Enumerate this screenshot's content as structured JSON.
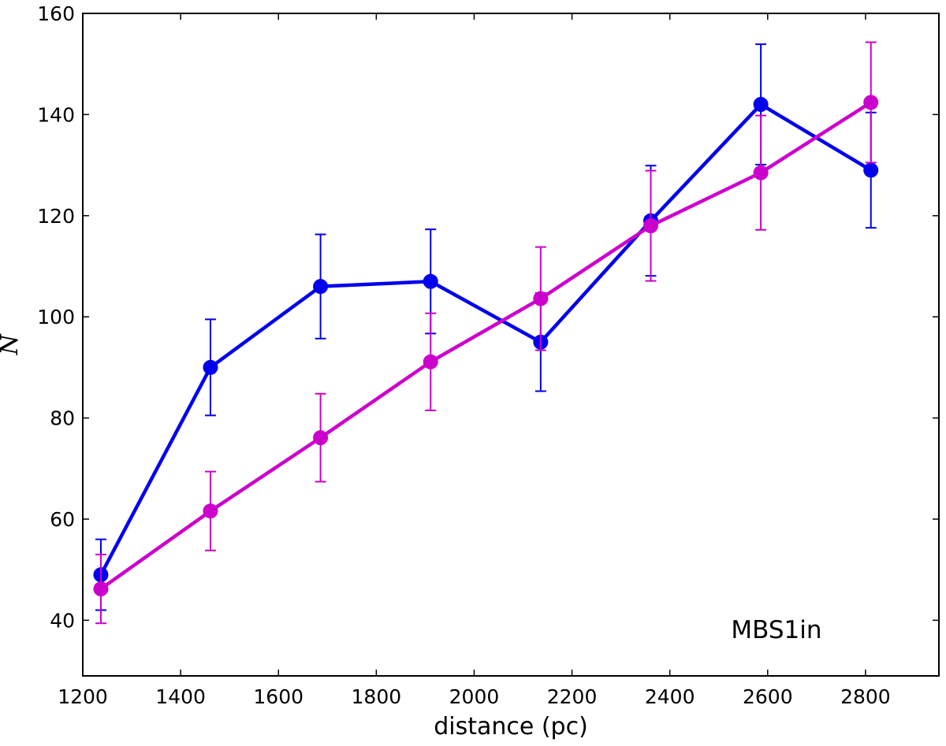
{
  "chart_data": {
    "type": "line",
    "title": "",
    "xlabel": "distance (pc)",
    "ylabel": "N",
    "xlim": [
      1200,
      2950
    ],
    "ylim": [
      29,
      160
    ],
    "xticks": [
      1200,
      1400,
      1600,
      1800,
      2000,
      2200,
      2400,
      2600,
      2800
    ],
    "xtick_labels": [
      "1200",
      "1400",
      "1600",
      "1800",
      "2000",
      "2200",
      "2400",
      "2600",
      "2800"
    ],
    "yticks": [
      40,
      60,
      80,
      100,
      120,
      140,
      160
    ],
    "ytick_labels": [
      "40",
      "60",
      "80",
      "100",
      "120",
      "140",
      "160"
    ],
    "grid": false,
    "annotation": "MBS1in",
    "series": [
      {
        "color": "#0000ee",
        "x": [
          1237,
          1461,
          1686,
          1911,
          2136,
          2361,
          2586,
          2811
        ],
        "y": [
          49,
          90,
          106,
          107,
          95,
          119,
          142,
          129
        ],
        "err": [
          7,
          9.5,
          10.3,
          10.3,
          9.7,
          10.9,
          11.9,
          11.4
        ]
      },
      {
        "color": "#cc00cc",
        "x": [
          1237,
          1461,
          1686,
          1911,
          2136,
          2361,
          2586,
          2811
        ],
        "y": [
          46.2,
          61.6,
          76.1,
          91.1,
          103.6,
          118,
          128.5,
          142.4
        ],
        "err": [
          6.8,
          7.8,
          8.7,
          9.6,
          10.2,
          10.9,
          11.3,
          11.9
        ]
      }
    ]
  }
}
